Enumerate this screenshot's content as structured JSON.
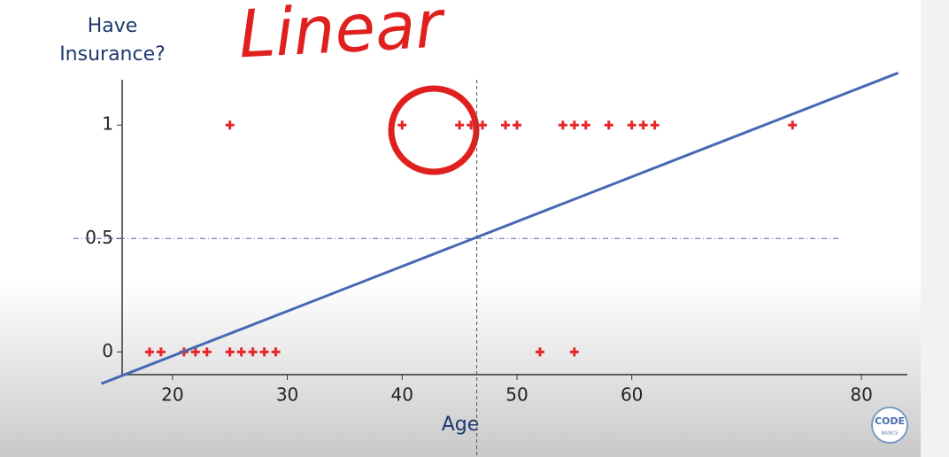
{
  "chart_data": {
    "type": "scatter",
    "ylabel": "Have Insurance?",
    "xlabel": "Age",
    "annotation": "Linear",
    "logo": [
      "CODE",
      "BASICS"
    ],
    "xlim": [
      14,
      84
    ],
    "ylim": [
      -0.1,
      1.2
    ],
    "xticks": [
      20,
      30,
      40,
      50,
      60,
      80
    ],
    "yticks": [
      0,
      0.5,
      1
    ],
    "hlines": [
      0.5
    ],
    "vlines": [
      46.5
    ],
    "series": [
      {
        "type": "scatter",
        "color": "#e8262a",
        "x": [
          25,
          40,
          45,
          46,
          47,
          49,
          50,
          54,
          55,
          56,
          58,
          60,
          61,
          62,
          74,
          18,
          19,
          21,
          22,
          23,
          25,
          26,
          27,
          28,
          29,
          52,
          55
        ],
        "values": [
          1,
          1,
          1,
          1,
          1,
          1,
          1,
          1,
          1,
          1,
          1,
          1,
          1,
          1,
          1,
          0,
          0,
          0,
          0,
          0,
          0,
          0,
          0,
          0,
          0,
          0,
          0
        ]
      },
      {
        "type": "line",
        "color": "#4768b3",
        "x": [
          13.8,
          83.2
        ],
        "values": [
          -0.14,
          1.23
        ]
      }
    ]
  }
}
